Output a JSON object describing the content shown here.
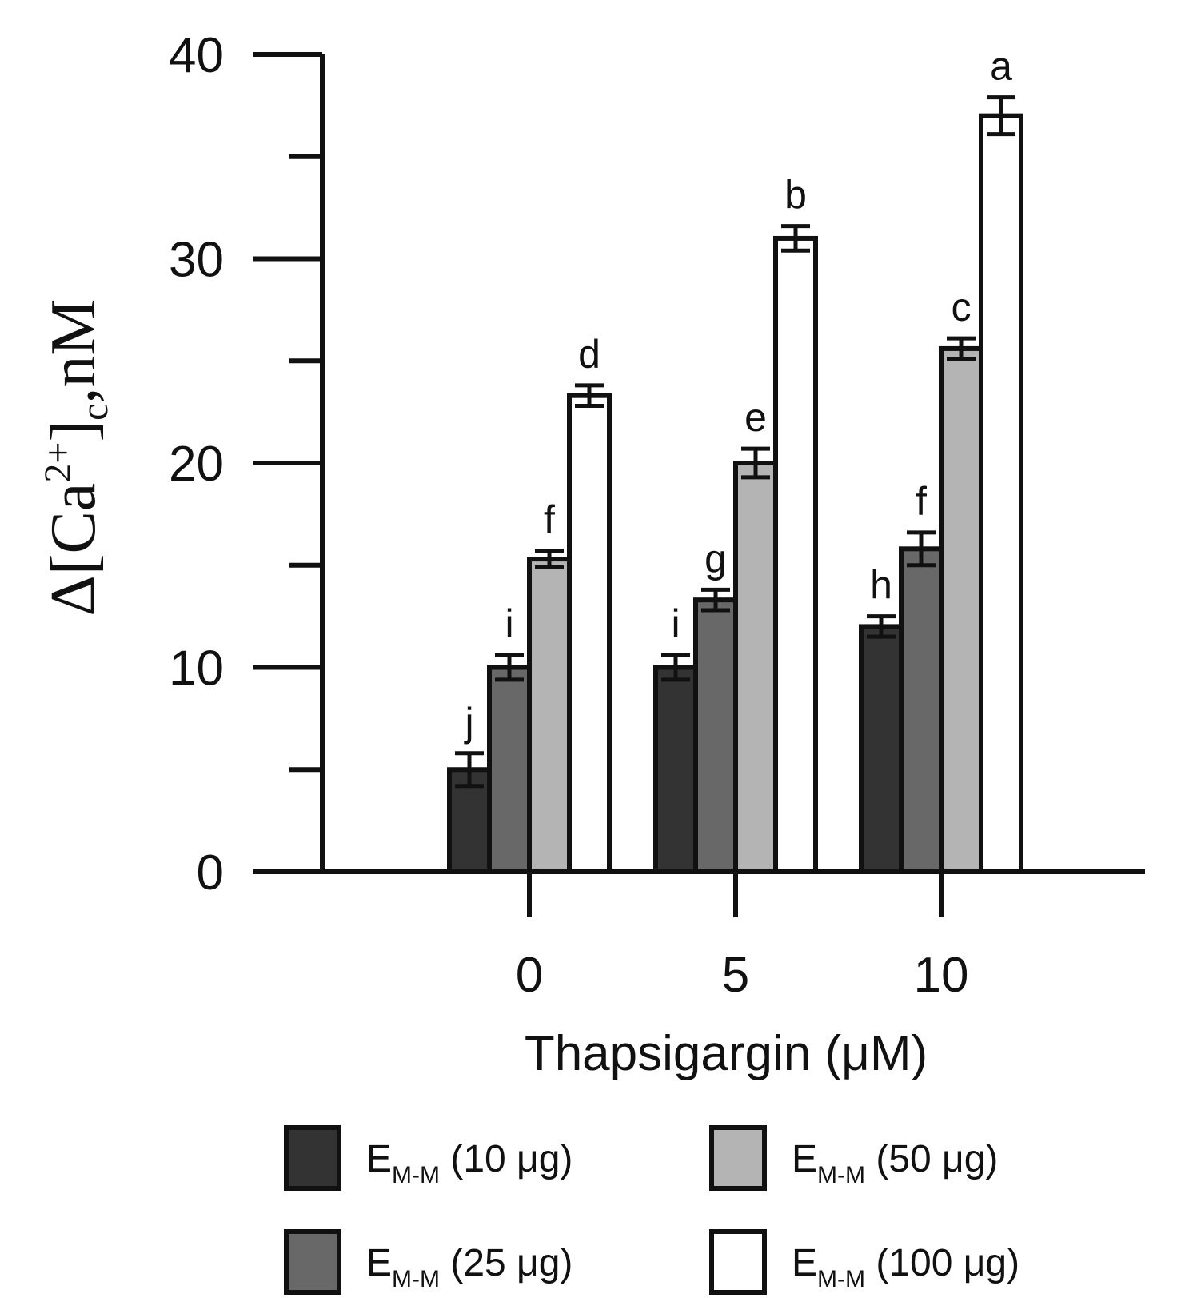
{
  "chart_data": {
    "type": "bar",
    "title": "",
    "xlabel": "Thapsigargin (μM)",
    "ylabel": {
      "prefix": "Δ[Ca",
      "superscript": "2+",
      "bracket": "]",
      "subscript": "c",
      "suffix": ",nM"
    },
    "ylim": [
      0,
      40
    ],
    "yticks": [
      0,
      10,
      20,
      30,
      40
    ],
    "ytick_labels": [
      "0",
      "10",
      "20",
      "30",
      "40"
    ],
    "grid": false,
    "legend_position": "bottom",
    "categories": [
      "0",
      "5",
      "10"
    ],
    "series": [
      {
        "name": "E_M-M (10 μg)",
        "legend_main": "E",
        "legend_sub": "M-M",
        "legend_rest": " (10 μg)",
        "color": "#333333",
        "values": [
          5.0,
          10.0,
          12.0
        ],
        "errors": [
          0.8,
          0.6,
          0.5
        ],
        "letters": [
          "j",
          "i",
          "h"
        ]
      },
      {
        "name": "E_M-M (25 μg)",
        "legend_main": "E",
        "legend_sub": "M-M",
        "legend_rest": " (25 μg)",
        "color": "#686868",
        "values": [
          10.0,
          13.3,
          15.8
        ],
        "errors": [
          0.6,
          0.5,
          0.8
        ],
        "letters": [
          "i",
          "g",
          "f"
        ]
      },
      {
        "name": "E_M-M (50 μg)",
        "legend_main": "E",
        "legend_sub": "M-M",
        "legend_rest": " (50 μg)",
        "color": "#b4b4b4",
        "values": [
          15.3,
          20.0,
          25.6
        ],
        "errors": [
          0.4,
          0.7,
          0.5
        ],
        "letters": [
          "f",
          "e",
          "c"
        ]
      },
      {
        "name": "E_M-M (100 μg)",
        "legend_main": "E",
        "legend_sub": "M-M",
        "legend_rest": " (100 μg)",
        "color": "#ffffff",
        "values": [
          23.3,
          31.0,
          37.0
        ],
        "errors": [
          0.5,
          0.6,
          0.9
        ],
        "letters": [
          "d",
          "b",
          "a"
        ]
      }
    ]
  }
}
